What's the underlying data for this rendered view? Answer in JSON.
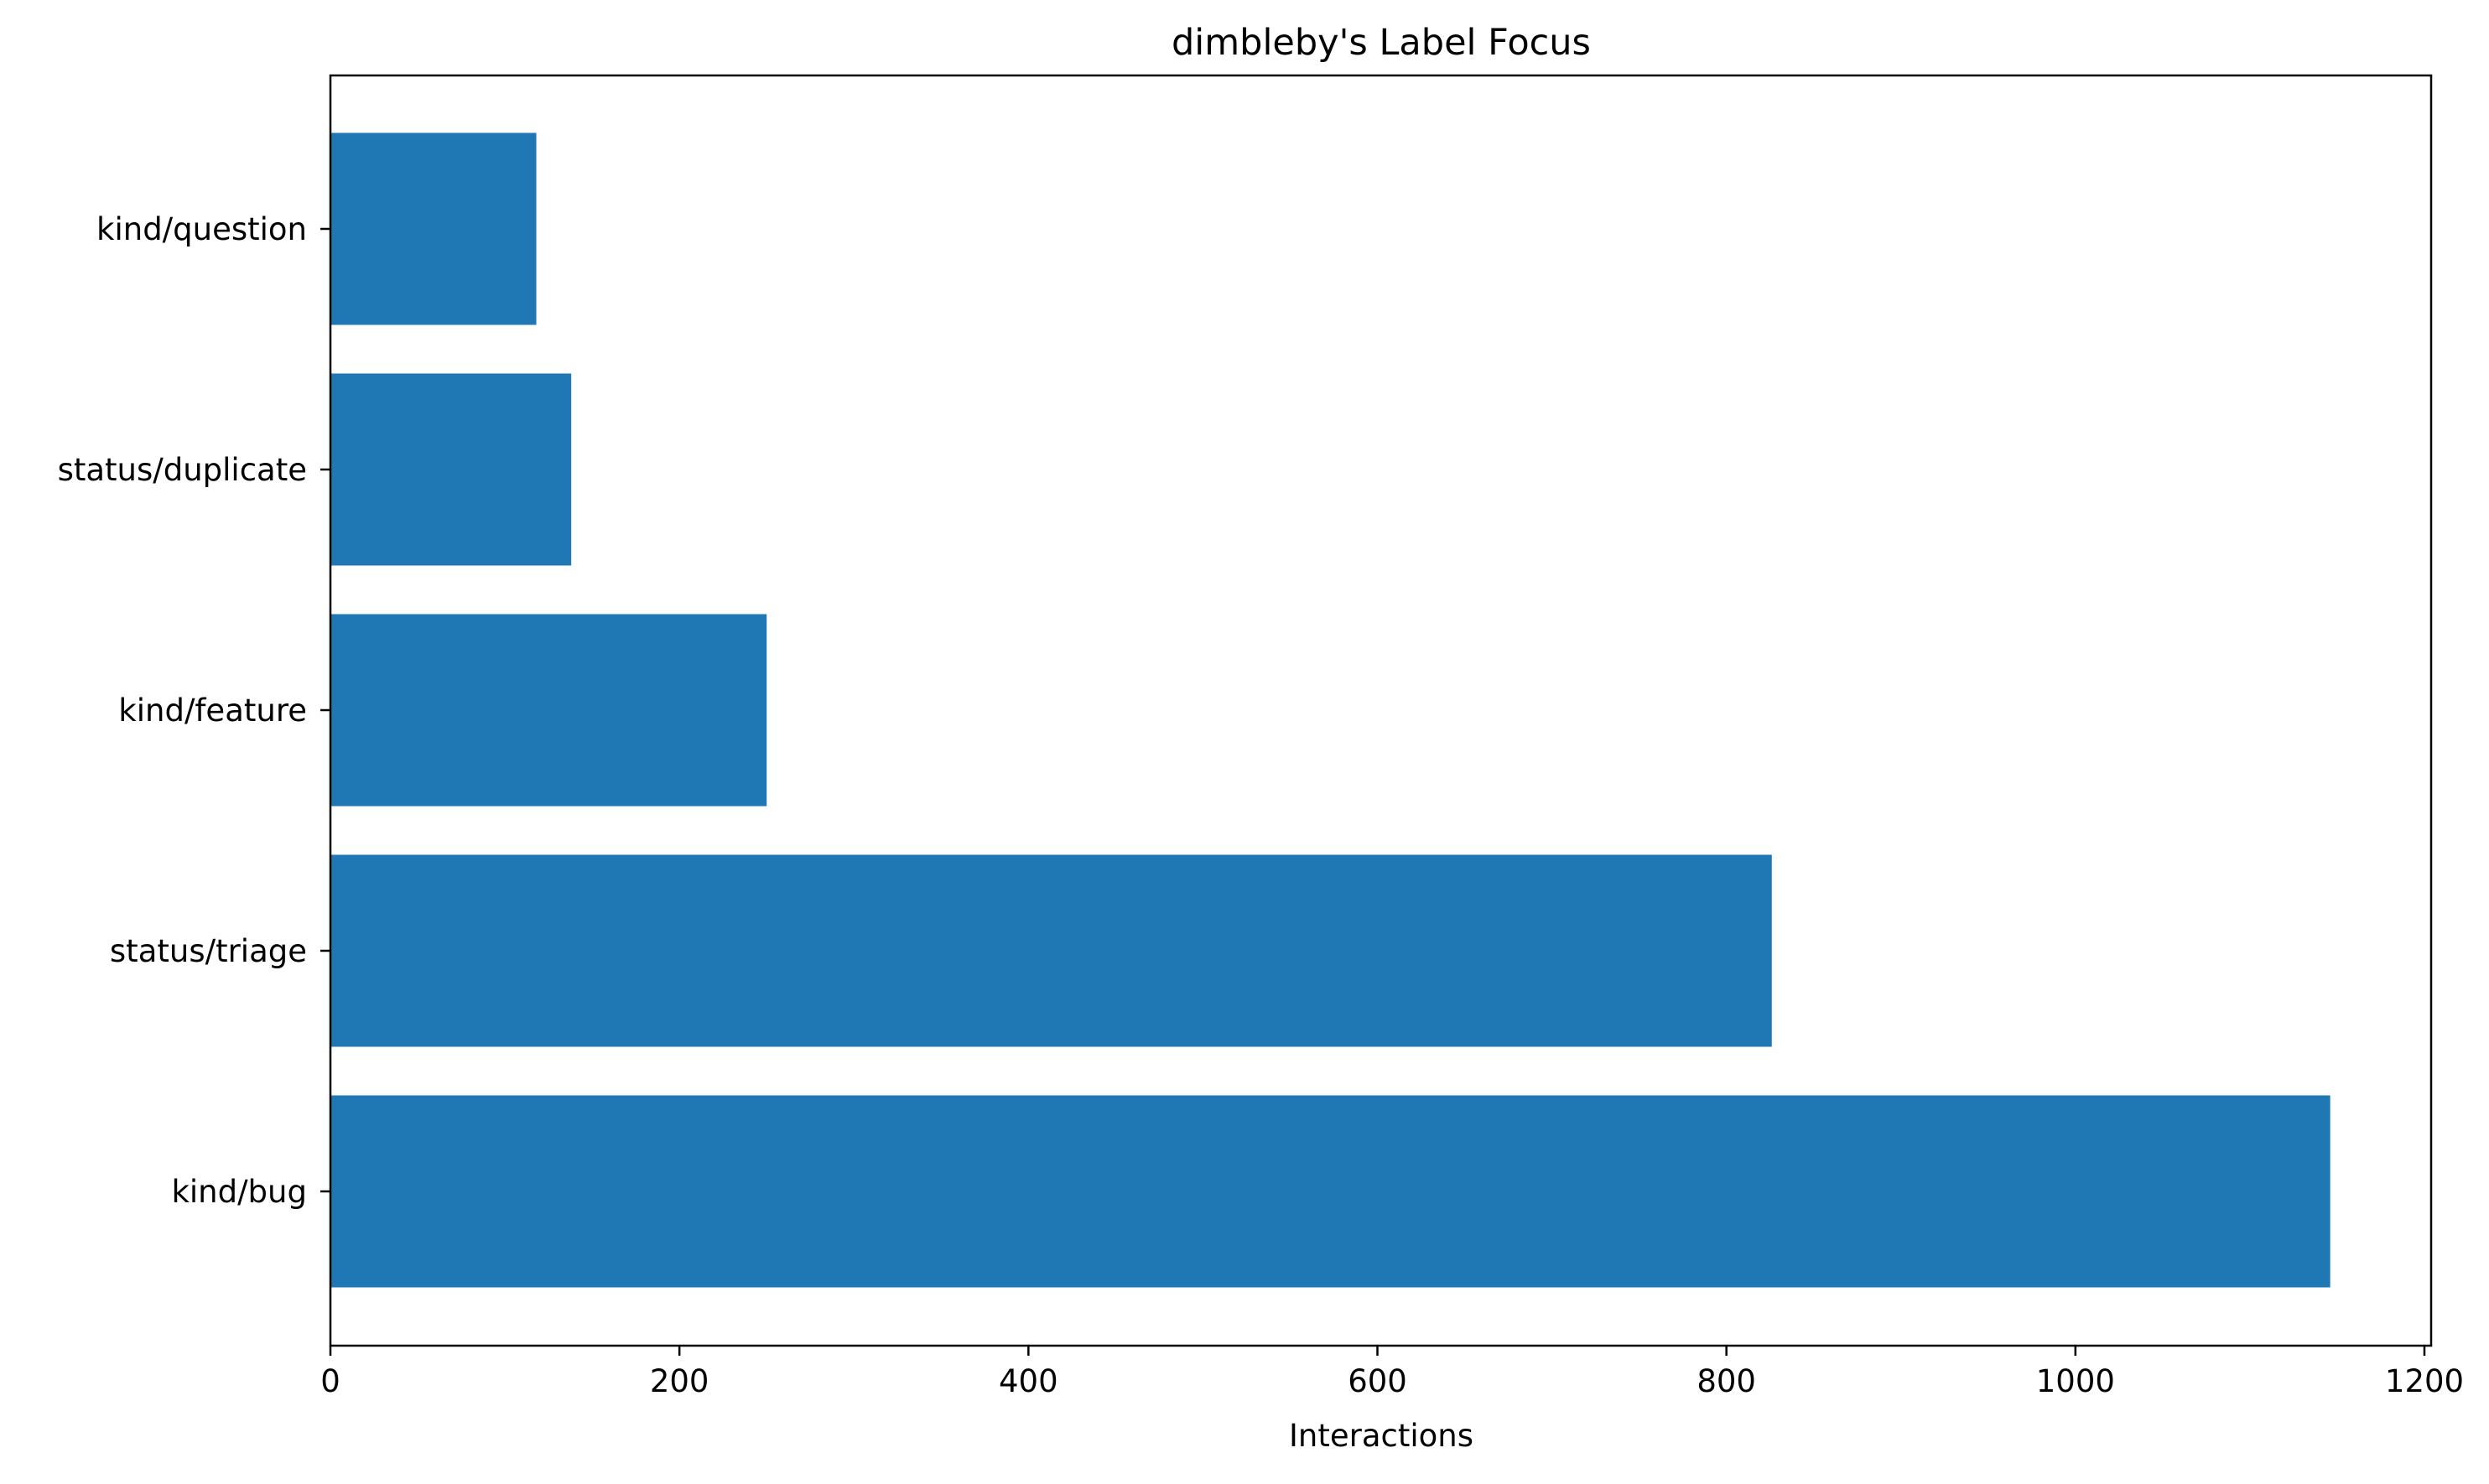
{
  "chart_data": {
    "type": "bar",
    "orientation": "horizontal",
    "title": "dimbleby's Label Focus",
    "xlabel": "Interactions",
    "ylabel": "",
    "categories": [
      "kind/bug",
      "status/triage",
      "kind/feature",
      "status/duplicate",
      "kind/question"
    ],
    "values": [
      1146,
      826,
      250,
      138,
      118
    ],
    "xlim": [
      0,
      1200
    ],
    "xticks": [
      "0",
      "200",
      "400",
      "600",
      "800",
      "1000",
      "1200"
    ],
    "grid": false,
    "legend": "none",
    "bar_color": "#1f77b4"
  }
}
